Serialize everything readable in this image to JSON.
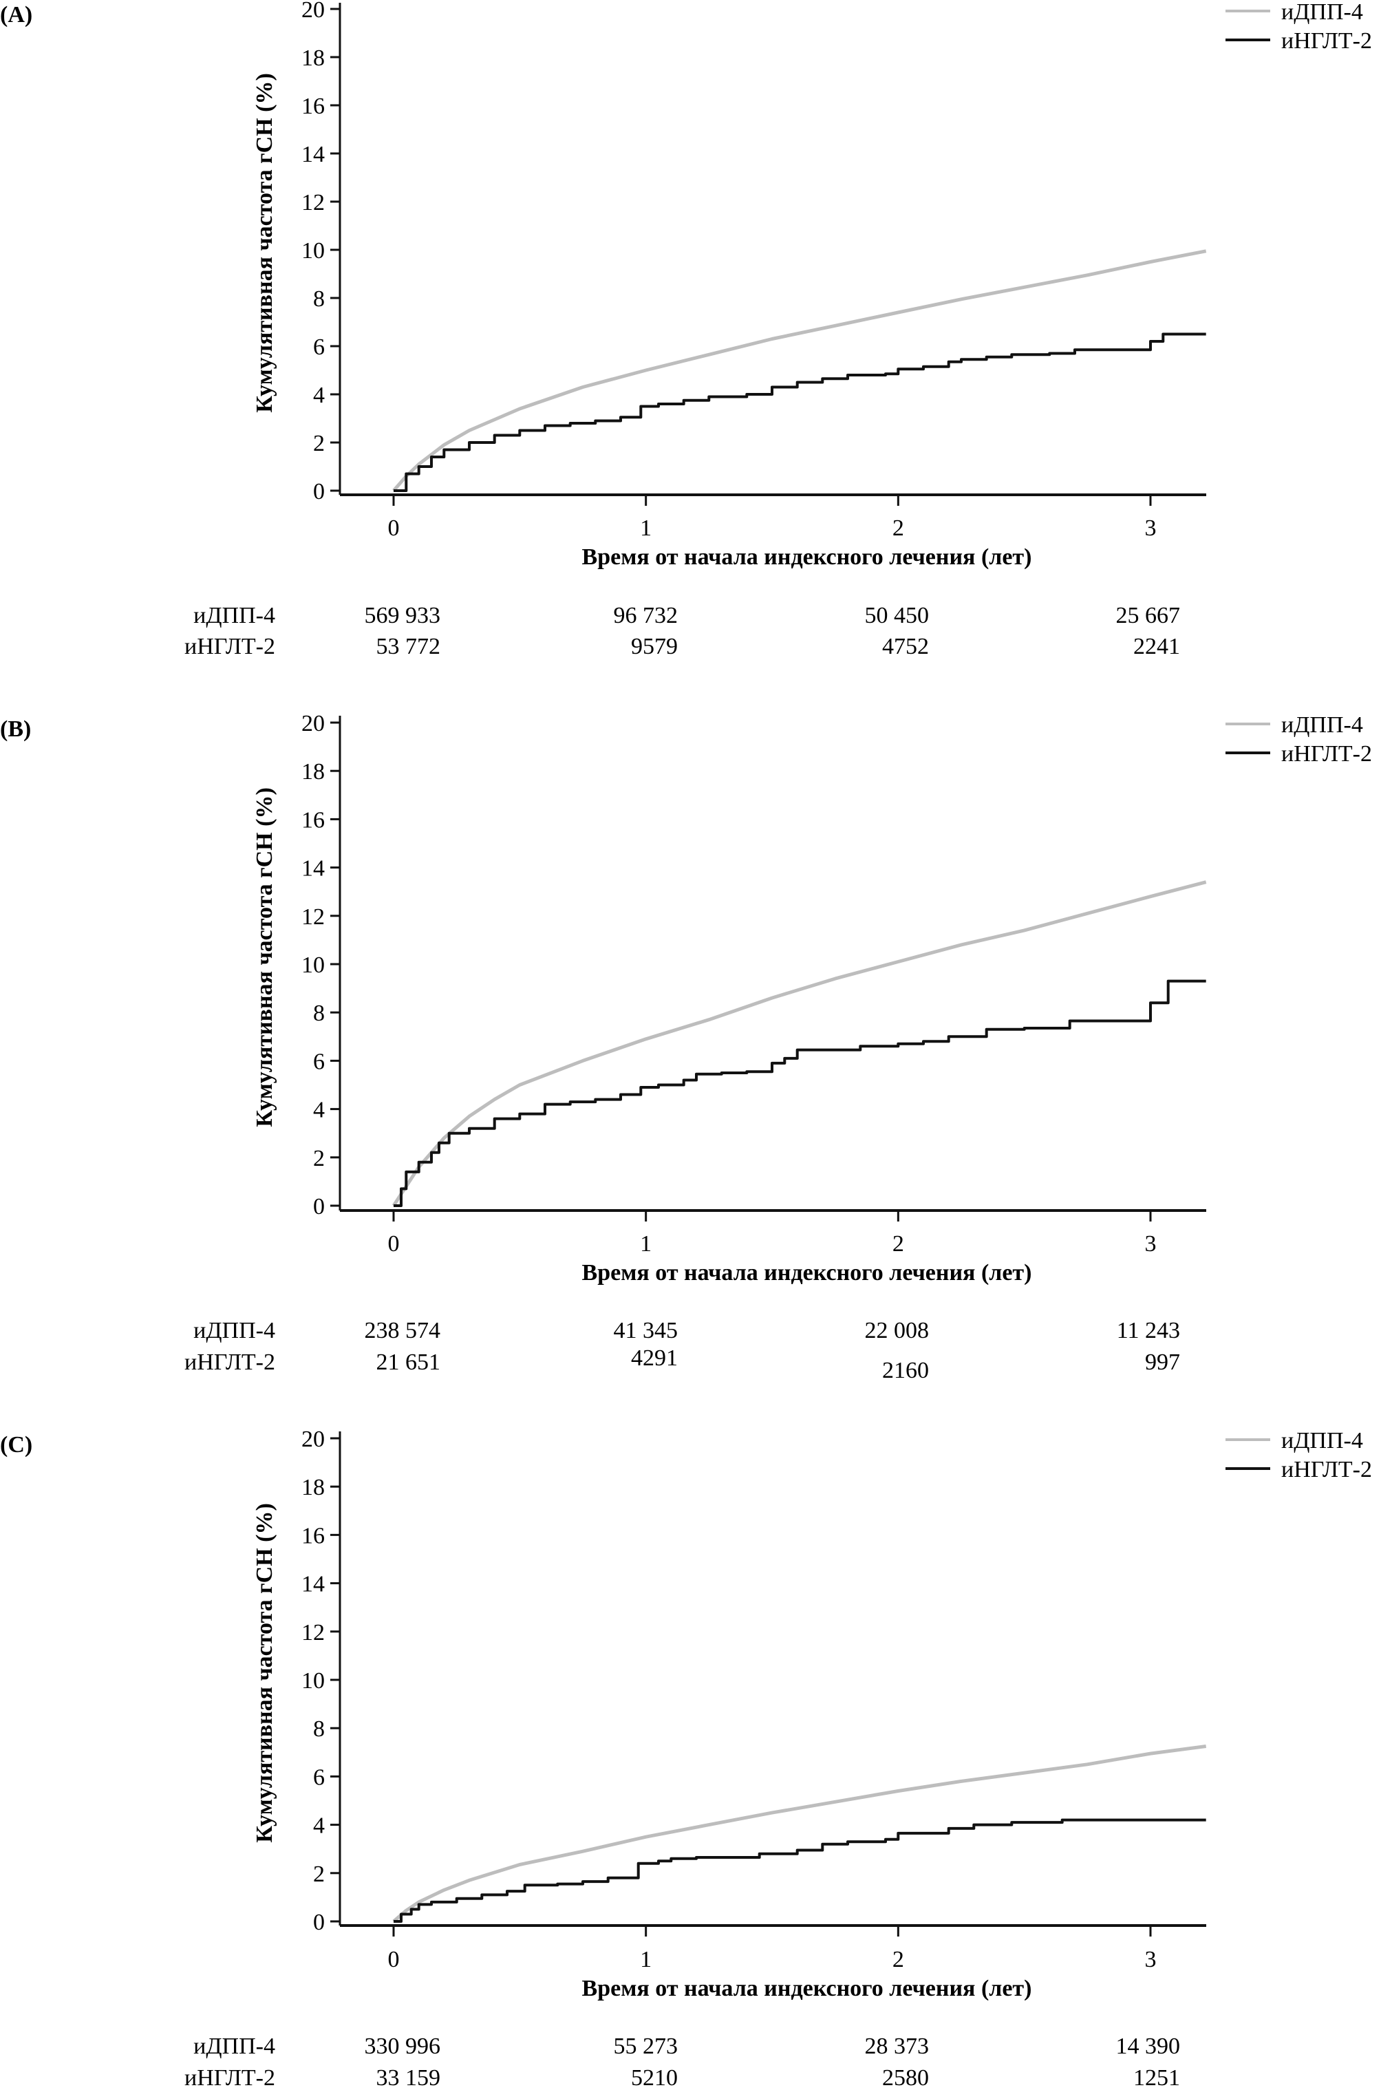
{
  "chart_data": [
    {
      "type": "line",
      "panel_label": "(A)",
      "xlabel": "Время от начала индексного лечения (лет)",
      "ylabel": "Кумулятивная частота гСН (%)",
      "xlim": [
        -0.1,
        3.22
      ],
      "ylim": [
        0,
        20
      ],
      "x_ticks": [
        "0",
        "1",
        "2",
        "3"
      ],
      "y_ticks": [
        "0",
        "2",
        "4",
        "6",
        "8",
        "10",
        "12",
        "14",
        "16",
        "18",
        "20"
      ],
      "grid": false,
      "legend_position": "top-right",
      "series": [
        {
          "name": "иДПП-4",
          "color": "#bdbdbd",
          "step": false,
          "x": [
            0,
            0.05,
            0.1,
            0.2,
            0.3,
            0.5,
            0.75,
            1.0,
            1.25,
            1.5,
            1.75,
            2.0,
            2.25,
            2.5,
            2.75,
            3.0,
            3.22
          ],
          "y": [
            0,
            0.6,
            1.1,
            1.9,
            2.5,
            3.4,
            4.3,
            5.0,
            5.65,
            6.3,
            6.85,
            7.4,
            7.95,
            8.45,
            8.95,
            9.5,
            9.95
          ]
        },
        {
          "name": "иНГЛТ-2",
          "color": "#111111",
          "step": true,
          "x": [
            0,
            0.05,
            0.1,
            0.15,
            0.2,
            0.3,
            0.4,
            0.5,
            0.6,
            0.7,
            0.8,
            0.9,
            0.98,
            1.05,
            1.15,
            1.25,
            1.4,
            1.5,
            1.6,
            1.7,
            1.8,
            1.95,
            2.0,
            2.1,
            2.2,
            2.25,
            2.35,
            2.45,
            2.6,
            2.7,
            3.0,
            3.05,
            3.22
          ],
          "y": [
            0,
            0.7,
            1.0,
            1.4,
            1.7,
            2.0,
            2.3,
            2.5,
            2.7,
            2.8,
            2.9,
            3.05,
            3.5,
            3.6,
            3.75,
            3.9,
            4.0,
            4.3,
            4.5,
            4.65,
            4.8,
            4.85,
            5.05,
            5.15,
            5.35,
            5.45,
            5.55,
            5.65,
            5.7,
            5.85,
            6.2,
            6.5,
            6.5
          ]
        }
      ],
      "at_risk": {
        "rows": [
          {
            "label": "иДПП-4",
            "values": [
              "569 933",
              "96 732",
              "50 450",
              "25 667"
            ]
          },
          {
            "label": "иНГЛТ-2",
            "values": [
              "53 772",
              "9579",
              "4752",
              "2241"
            ]
          }
        ]
      }
    },
    {
      "type": "line",
      "panel_label": "(B)",
      "xlabel": "Время от начала индексного лечения (лет)",
      "ylabel": "Кумулятивная частота гСН (%)",
      "xlim": [
        -0.1,
        3.22
      ],
      "ylim": [
        0,
        20
      ],
      "x_ticks": [
        "0",
        "1",
        "2",
        "3"
      ],
      "y_ticks": [
        "0",
        "2",
        "4",
        "6",
        "8",
        "10",
        "12",
        "14",
        "16",
        "18",
        "20"
      ],
      "grid": false,
      "legend_position": "top-right",
      "series": [
        {
          "name": "иДПП-4",
          "color": "#bdbdbd",
          "step": false,
          "x": [
            0,
            0.05,
            0.1,
            0.2,
            0.3,
            0.4,
            0.5,
            0.75,
            1.0,
            1.25,
            1.5,
            1.75,
            2.0,
            2.25,
            2.5,
            2.75,
            3.0,
            3.22
          ],
          "y": [
            0,
            0.8,
            1.6,
            2.8,
            3.7,
            4.4,
            5.0,
            6.0,
            6.9,
            7.7,
            8.6,
            9.4,
            10.1,
            10.8,
            11.4,
            12.1,
            12.8,
            13.4
          ]
        },
        {
          "name": "иНГЛТ-2",
          "color": "#111111",
          "step": true,
          "x": [
            0,
            0.03,
            0.05,
            0.1,
            0.15,
            0.18,
            0.22,
            0.3,
            0.4,
            0.5,
            0.6,
            0.7,
            0.8,
            0.9,
            0.98,
            1.05,
            1.15,
            1.2,
            1.3,
            1.4,
            1.5,
            1.55,
            1.6,
            1.75,
            1.85,
            2.0,
            2.1,
            2.2,
            2.35,
            2.5,
            2.65,
            2.68,
            3.0,
            3.05,
            3.07,
            3.22
          ],
          "y": [
            0,
            0.7,
            1.4,
            1.8,
            2.2,
            2.6,
            3.0,
            3.2,
            3.6,
            3.8,
            4.2,
            4.3,
            4.4,
            4.6,
            4.9,
            5.0,
            5.2,
            5.45,
            5.5,
            5.55,
            5.9,
            6.1,
            6.45,
            6.45,
            6.6,
            6.7,
            6.8,
            7.0,
            7.3,
            7.35,
            7.35,
            7.65,
            8.4,
            8.4,
            9.3,
            9.3
          ]
        }
      ],
      "at_risk": {
        "rows": [
          {
            "label": "иДПП-4",
            "values": [
              "238 574",
              "41 345",
              "22 008",
              "11 243"
            ]
          },
          {
            "label": "иНГЛТ-2",
            "values": [
              "21 651",
              "4291",
              "2160",
              "997"
            ]
          }
        ]
      }
    },
    {
      "type": "line",
      "panel_label": "(C)",
      "xlabel": "Время от начала индексного лечения (лет)",
      "ylabel": "Кумулятивная частота гСН (%)",
      "xlim": [
        -0.1,
        3.22
      ],
      "ylim": [
        0,
        20
      ],
      "x_ticks": [
        "0",
        "1",
        "2",
        "3"
      ],
      "y_ticks": [
        "0",
        "2",
        "4",
        "6",
        "8",
        "10",
        "12",
        "14",
        "16",
        "18",
        "20"
      ],
      "grid": false,
      "legend_position": "top-right",
      "series": [
        {
          "name": "иДПП-4",
          "color": "#bdbdbd",
          "step": false,
          "x": [
            0,
            0.05,
            0.1,
            0.2,
            0.3,
            0.5,
            0.75,
            1.0,
            1.25,
            1.5,
            1.75,
            2.0,
            2.25,
            2.5,
            2.75,
            3.0,
            3.22
          ],
          "y": [
            0,
            0.45,
            0.8,
            1.3,
            1.7,
            2.35,
            2.9,
            3.5,
            4.0,
            4.5,
            4.95,
            5.4,
            5.8,
            6.15,
            6.5,
            6.95,
            7.25
          ]
        },
        {
          "name": "иНГЛТ-2",
          "color": "#111111",
          "step": true,
          "x": [
            0,
            0.03,
            0.07,
            0.1,
            0.15,
            0.25,
            0.35,
            0.45,
            0.52,
            0.65,
            0.75,
            0.85,
            0.97,
            1.05,
            1.1,
            1.2,
            1.45,
            1.6,
            1.7,
            1.8,
            1.95,
            2.0,
            2.2,
            2.3,
            2.45,
            2.65,
            3.22
          ],
          "y": [
            0,
            0.3,
            0.5,
            0.7,
            0.8,
            0.95,
            1.1,
            1.25,
            1.5,
            1.55,
            1.65,
            1.8,
            2.4,
            2.5,
            2.6,
            2.65,
            2.8,
            2.95,
            3.2,
            3.3,
            3.4,
            3.65,
            3.85,
            4.0,
            4.1,
            4.2,
            4.2
          ]
        }
      ],
      "at_risk": {
        "rows": [
          {
            "label": "иДПП-4",
            "values": [
              "330 996",
              "55 273",
              "28 373",
              "14 390"
            ]
          },
          {
            "label": "иНГЛТ-2",
            "values": [
              "33 159",
              "5210",
              "2580",
              "1251"
            ]
          }
        ]
      }
    }
  ]
}
